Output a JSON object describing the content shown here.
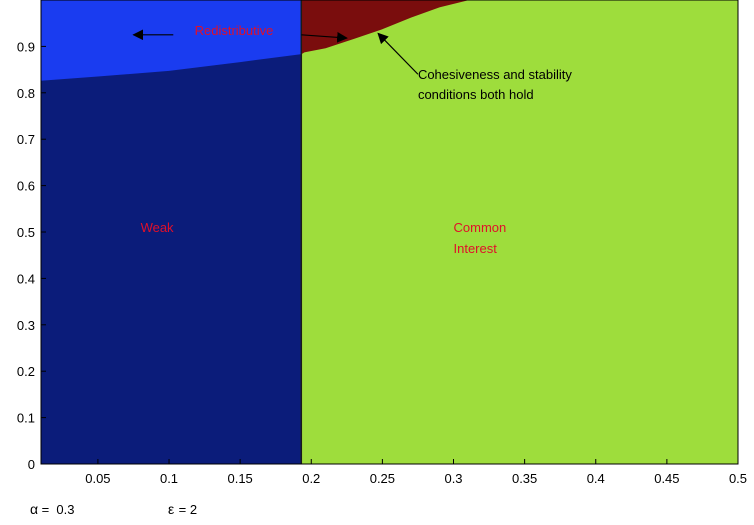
{
  "chart_data": {
    "type": "area",
    "title": "",
    "xlabel": "",
    "ylabel": "",
    "xlim": [
      0.01,
      0.5
    ],
    "ylim": [
      0,
      1
    ],
    "xticks": [
      {
        "value": 0.05,
        "label": "0.05"
      },
      {
        "value": 0.1,
        "label": "0.1"
      },
      {
        "value": 0.15,
        "label": "0.15"
      },
      {
        "value": 0.2,
        "label": "0.2"
      },
      {
        "value": 0.25,
        "label": "0.25"
      },
      {
        "value": 0.3,
        "label": "0.3"
      },
      {
        "value": 0.35,
        "label": "0.35"
      },
      {
        "value": 0.4,
        "label": "0.4"
      },
      {
        "value": 0.45,
        "label": "0.45"
      },
      {
        "value": 0.5,
        "label": "0.5"
      }
    ],
    "yticks": [
      {
        "value": 0,
        "label": "0"
      },
      {
        "value": 0.1,
        "label": "0.1"
      },
      {
        "value": 0.2,
        "label": "0.2"
      },
      {
        "value": 0.3,
        "label": "0.3"
      },
      {
        "value": 0.4,
        "label": "0.4"
      },
      {
        "value": 0.5,
        "label": "0.5"
      },
      {
        "value": 0.6,
        "label": "0.6"
      },
      {
        "value": 0.7,
        "label": "0.7"
      },
      {
        "value": 0.8,
        "label": "0.8"
      },
      {
        "value": 0.9,
        "label": "0.9"
      }
    ],
    "grid": false,
    "boundary_x": 0.193,
    "regions": [
      {
        "name": "Weak",
        "color": "#0b1c7a",
        "polygon": [
          [
            0.01,
            0
          ],
          [
            0.193,
            0
          ],
          [
            0.193,
            0.884
          ],
          [
            0.15,
            0.867
          ],
          [
            0.1,
            0.848
          ],
          [
            0.05,
            0.836
          ],
          [
            0.01,
            0.827
          ]
        ]
      },
      {
        "name": "Redistributive",
        "color": "#1a3cf0",
        "polygon": [
          [
            0.01,
            0.827
          ],
          [
            0.05,
            0.836
          ],
          [
            0.1,
            0.848
          ],
          [
            0.15,
            0.867
          ],
          [
            0.193,
            0.884
          ],
          [
            0.193,
            1
          ],
          [
            0.01,
            1
          ]
        ]
      },
      {
        "name": "Common Interest",
        "color": "#9edd3c",
        "polygon": [
          [
            0.193,
            0
          ],
          [
            0.5,
            0
          ],
          [
            0.5,
            1
          ],
          [
            0.31,
            1
          ],
          [
            0.29,
            0.985
          ],
          [
            0.27,
            0.963
          ],
          [
            0.25,
            0.938
          ],
          [
            0.23,
            0.917
          ],
          [
            0.21,
            0.897
          ],
          [
            0.195,
            0.888
          ],
          [
            0.193,
            0.884
          ]
        ]
      },
      {
        "name": "Cohesiveness and stability conditions both hold",
        "color": "#7a0d0d",
        "polygon": [
          [
            0.193,
            0.884
          ],
          [
            0.195,
            0.888
          ],
          [
            0.21,
            0.897
          ],
          [
            0.23,
            0.917
          ],
          [
            0.25,
            0.938
          ],
          [
            0.27,
            0.963
          ],
          [
            0.29,
            0.985
          ],
          [
            0.31,
            1
          ],
          [
            0.193,
            1
          ]
        ]
      }
    ],
    "annotations": [
      {
        "id": "redistributive",
        "text": "Redistributive",
        "x": 0.118,
        "y": 0.925,
        "color": "#e0102a"
      },
      {
        "id": "weak",
        "text": "Weak",
        "x": 0.08,
        "y": 0.5,
        "color": "#e0102a"
      },
      {
        "id": "common-1",
        "text": "Common",
        "x": 0.3,
        "y": 0.5,
        "color": "#e0102a"
      },
      {
        "id": "common-2",
        "text": "Interest",
        "x": 0.3,
        "y": 0.455,
        "color": "#e0102a"
      },
      {
        "id": "cohesive-1",
        "text": "Cohesiveness and stability",
        "x": 0.275,
        "y": 0.83,
        "color": "#000000"
      },
      {
        "id": "cohesive-2",
        "text": "conditions both hold",
        "x": 0.275,
        "y": 0.787,
        "color": "#000000"
      }
    ],
    "arrows": [
      {
        "id": "arrow-to-blue",
        "from": [
          0.103,
          0.925
        ],
        "to": [
          0.075,
          0.925
        ]
      },
      {
        "id": "arrow-to-red",
        "from": [
          0.193,
          0.925
        ],
        "to": [
          0.225,
          0.918
        ]
      },
      {
        "id": "arrow-cohesive",
        "from": [
          0.275,
          0.84
        ],
        "to": [
          0.247,
          0.928
        ]
      }
    ],
    "footnote": {
      "alpha_symbol": "α",
      "alpha_text": " =  0.3",
      "epsilon_symbol": "ε",
      "epsilon_text": " = 2"
    }
  }
}
